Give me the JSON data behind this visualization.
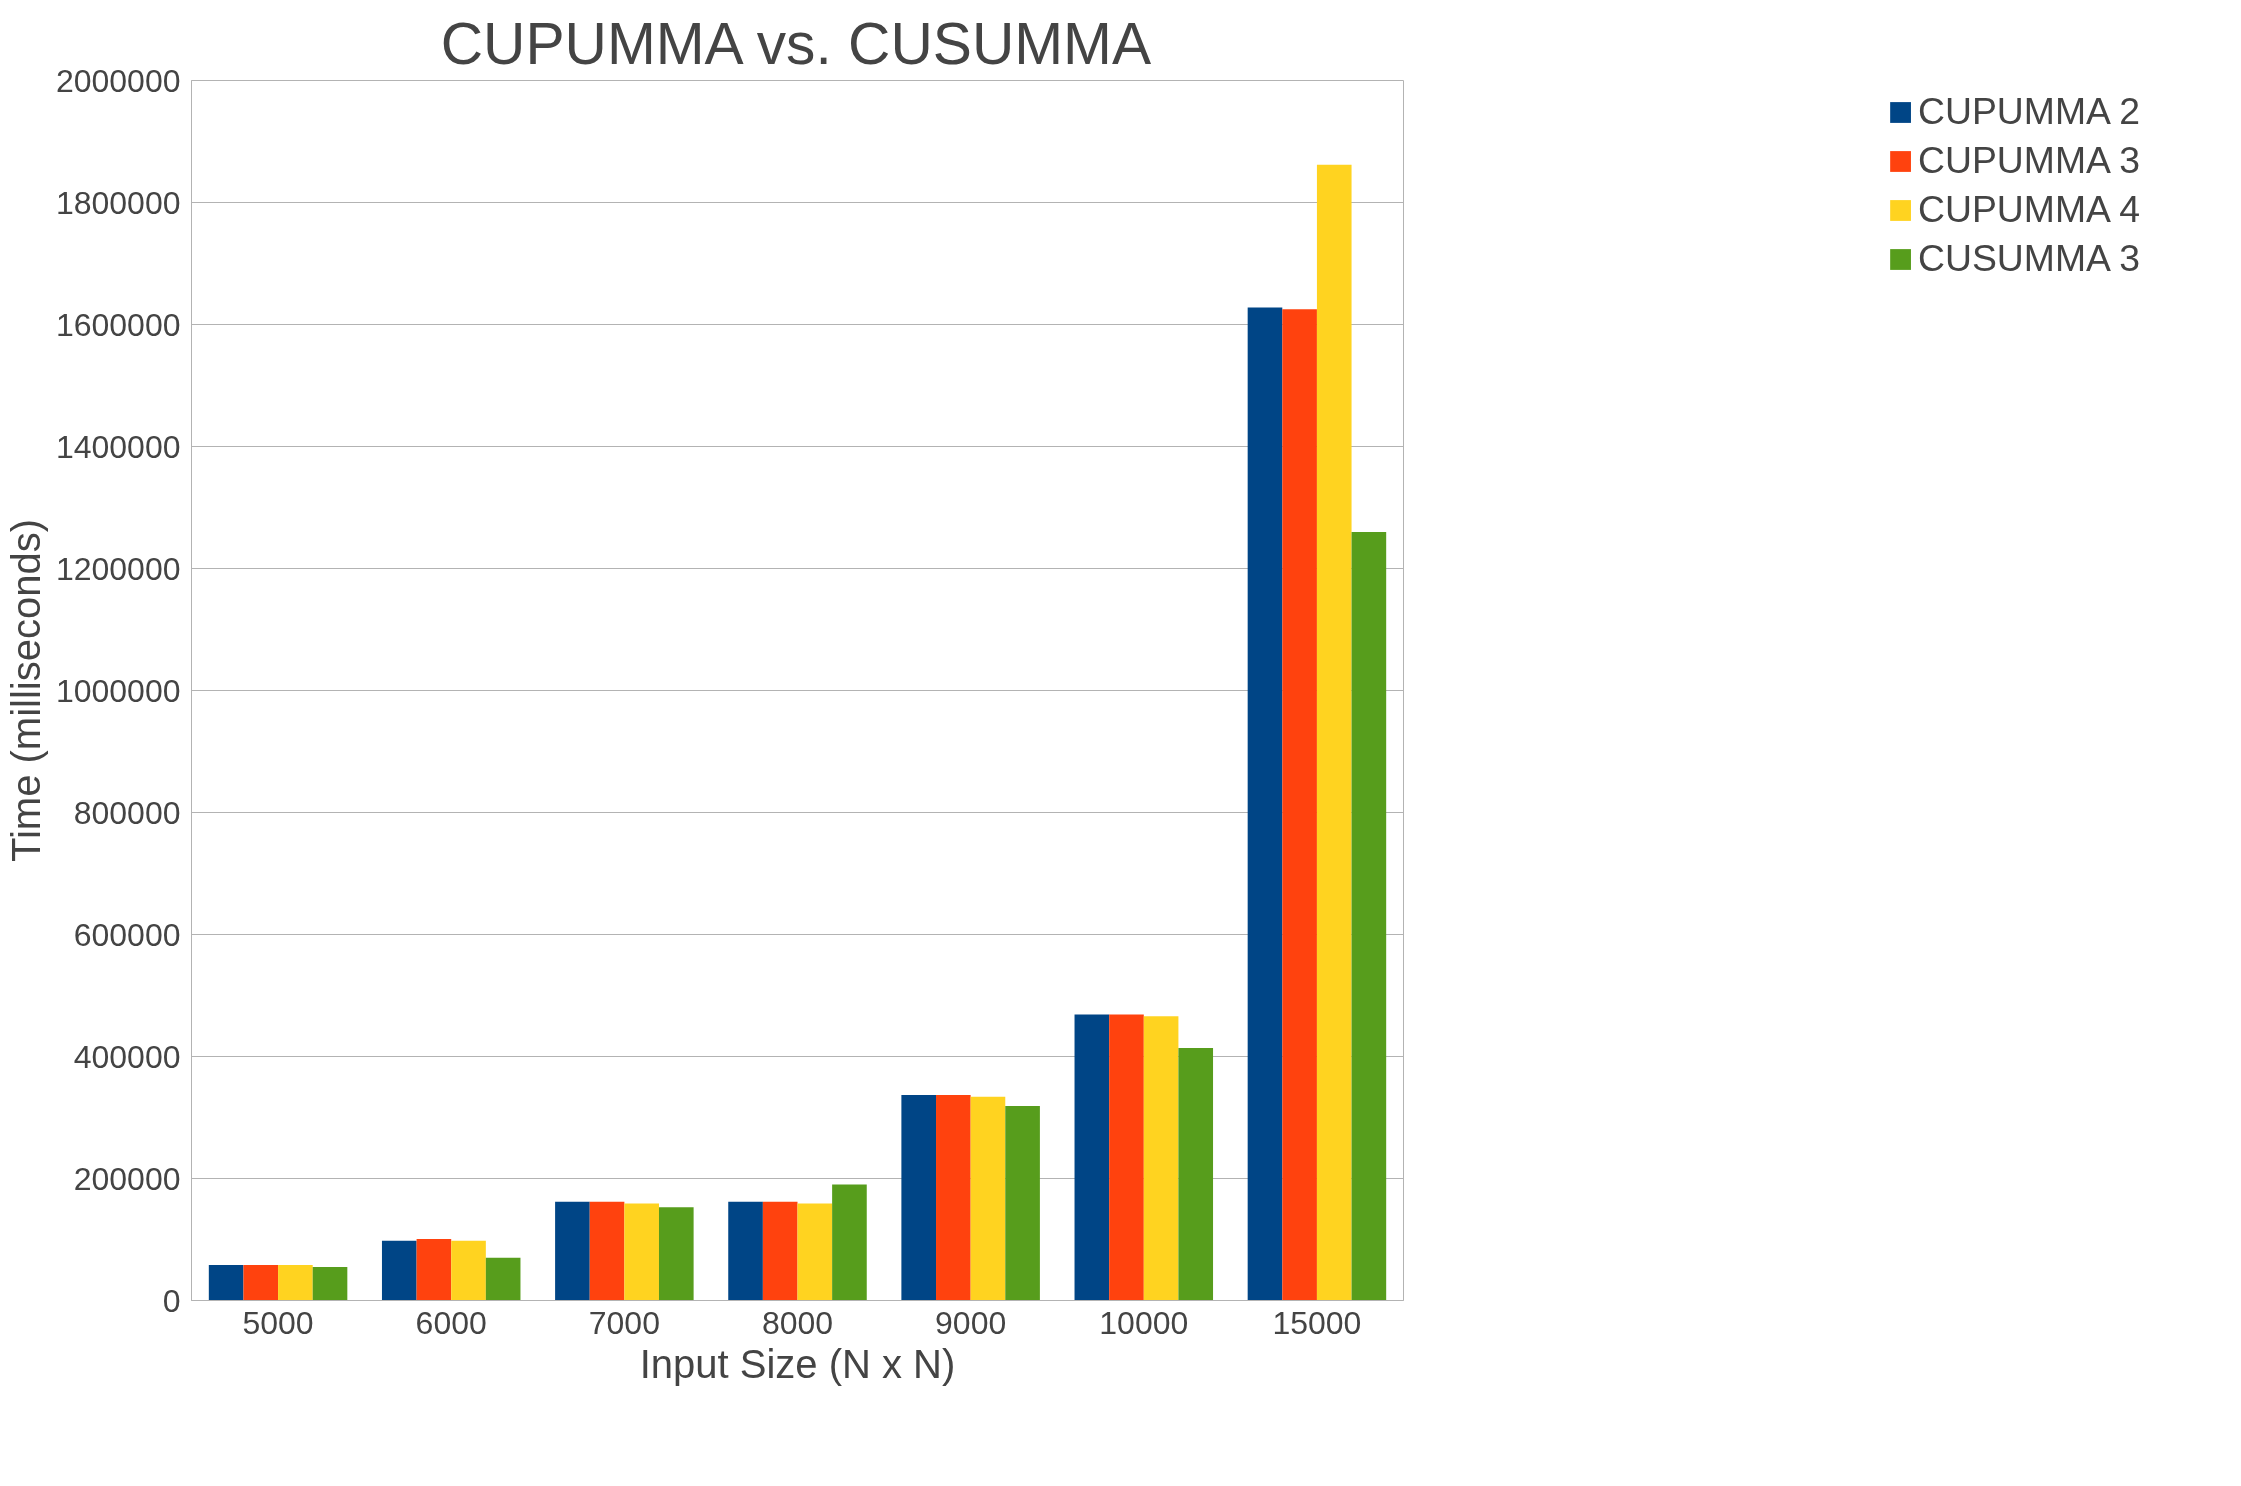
{
  "chart_data": {
    "type": "bar",
    "title": "CUPUMMA vs. CUSUMMA",
    "xlabel": "Input Size (N x N)",
    "ylabel": "Time (milliseconds)",
    "categories": [
      "5000",
      "6000",
      "7000",
      "8000",
      "9000",
      "10000",
      "15000"
    ],
    "series": [
      {
        "name": "CUPUMMA 2",
        "color": "#004586",
        "values": [
          58000,
          98000,
          162000,
          162000,
          337000,
          469000,
          1628000
        ]
      },
      {
        "name": "CUPUMMA 3",
        "color": "#ff420e",
        "values": [
          58000,
          101000,
          162000,
          162000,
          337000,
          469000,
          1625000
        ]
      },
      {
        "name": "CUPUMMA 4",
        "color": "#ffd320",
        "values": [
          58000,
          98000,
          159000,
          159000,
          334000,
          466000,
          1862000
        ]
      },
      {
        "name": "CUSUMMA 3",
        "color": "#579d1c",
        "values": [
          55000,
          70000,
          153000,
          190000,
          319000,
          414000,
          1260000
        ]
      }
    ],
    "ylim": [
      0,
      2000000
    ],
    "yticks": [
      0,
      200000,
      400000,
      600000,
      800000,
      1000000,
      1200000,
      1400000,
      1600000,
      1800000,
      2000000
    ],
    "grid": "y",
    "legend": "right"
  }
}
